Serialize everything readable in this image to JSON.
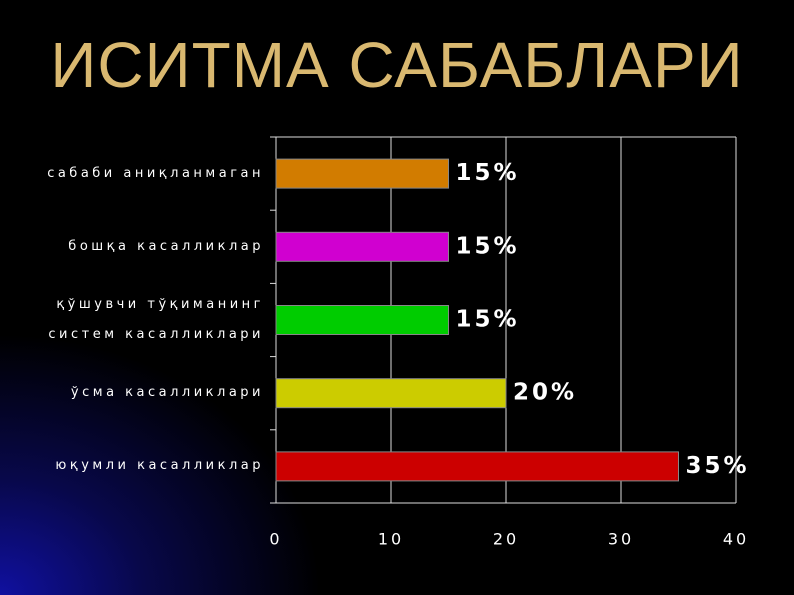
{
  "chart_data": {
    "type": "hbar",
    "title": "ИСИТМА САБАБЛАРИ",
    "categories": [
      "сабаби аниқланмаган",
      "бошқа касалликлар",
      "қўшувчи тўқиманинг систем касалликлари",
      "ўсма касалликлари",
      "юқумли касалликлар"
    ],
    "values": [
      15,
      15,
      15,
      20,
      35
    ],
    "value_labels": [
      "15%",
      "15%",
      "15%",
      "20%",
      "35%"
    ],
    "colors": [
      "#d27c00",
      "#d000d0",
      "#00cc00",
      "#cccc00",
      "#cc0000"
    ],
    "xlim": [
      0,
      40
    ],
    "xticks": [
      0,
      10,
      20,
      30,
      40
    ],
    "grid": true
  }
}
